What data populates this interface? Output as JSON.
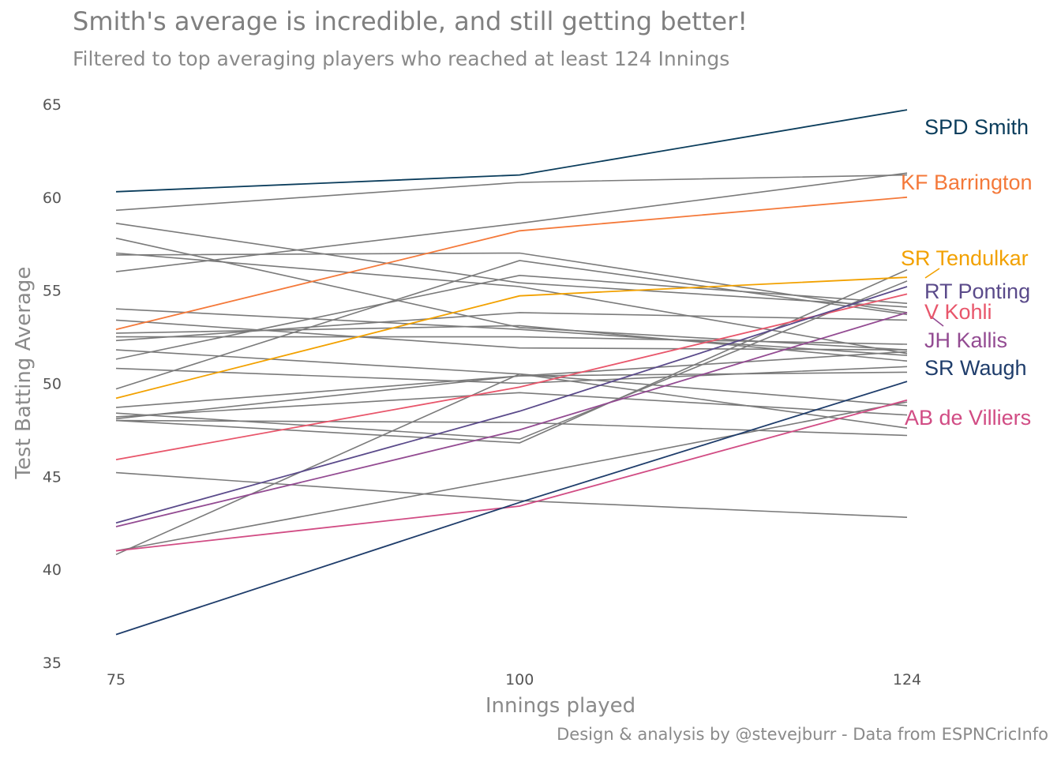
{
  "title": "Smith's average is incredible, and still getting better!",
  "subtitle": "Filtered to top averaging players who reached at least 124 Innings",
  "caption": "Design & analysis by @stevejburr - Data from ESPNCricInfo",
  "chart_data": {
    "type": "line",
    "x": [
      75,
      100,
      124
    ],
    "xlabel": "Innings played",
    "ylabel": "Test Batting Average",
    "xticks": [
      "75",
      "100",
      "124"
    ],
    "yticks": [
      "35",
      "40",
      "45",
      "50",
      "55",
      "60",
      "65"
    ],
    "xlim": [
      75,
      124
    ],
    "ylim": [
      35,
      65
    ],
    "grid": false,
    "legend": "direct labels at right",
    "highlight_series": [
      {
        "name": "SPD Smith",
        "color": "#0b3d5c",
        "values": [
          60.3,
          61.2,
          64.7
        ]
      },
      {
        "name": "KF Barrington",
        "color": "#f4793a",
        "values": [
          52.9,
          58.2,
          60.0
        ]
      },
      {
        "name": "SR Tendulkar",
        "color": "#f2a100",
        "values": [
          49.2,
          54.7,
          55.7
        ]
      },
      {
        "name": "RT Ponting",
        "color": "#5a4a8a",
        "values": [
          42.5,
          48.5,
          55.2
        ]
      },
      {
        "name": "V Kohli",
        "color": "#e8566b",
        "values": [
          45.9,
          49.8,
          54.8
        ]
      },
      {
        "name": "JH Kallis",
        "color": "#934b92",
        "values": [
          42.3,
          47.5,
          53.8
        ]
      },
      {
        "name": "SR Waugh",
        "color": "#1f3d6b",
        "values": [
          36.5,
          43.6,
          50.1
        ]
      },
      {
        "name": "AB de Villiers",
        "color": "#d14c84",
        "values": [
          41.0,
          43.4,
          49.1
        ]
      }
    ],
    "other_series": [
      [
        59.3,
        60.8,
        61.2
      ],
      [
        58.6,
        55.4,
        54.1
      ],
      [
        57.8,
        53.0,
        51.8
      ],
      [
        56.9,
        57.0,
        53.8
      ],
      [
        57.0,
        55.2,
        51.6
      ],
      [
        56.0,
        58.6,
        61.3
      ],
      [
        54.0,
        52.9,
        51.5
      ],
      [
        53.4,
        51.9,
        51.8
      ],
      [
        52.7,
        53.1,
        51.2
      ],
      [
        52.5,
        52.5,
        52.1
      ],
      [
        52.3,
        53.8,
        53.4
      ],
      [
        51.8,
        50.5,
        47.6
      ],
      [
        51.3,
        55.8,
        54.3
      ],
      [
        50.8,
        50.0,
        50.9
      ],
      [
        49.7,
        56.6,
        53.7
      ],
      [
        48.7,
        50.4,
        50.6
      ],
      [
        48.4,
        47.0,
        55.5
      ],
      [
        48.2,
        49.5,
        48.3
      ],
      [
        48.0,
        46.8,
        56.1
      ],
      [
        48.1,
        50.4,
        51.7
      ],
      [
        48.0,
        47.9,
        47.2
      ],
      [
        45.2,
        43.7,
        42.8
      ],
      [
        41.0,
        45.0,
        49.0
      ],
      [
        40.8,
        50.5,
        48.8
      ]
    ]
  }
}
